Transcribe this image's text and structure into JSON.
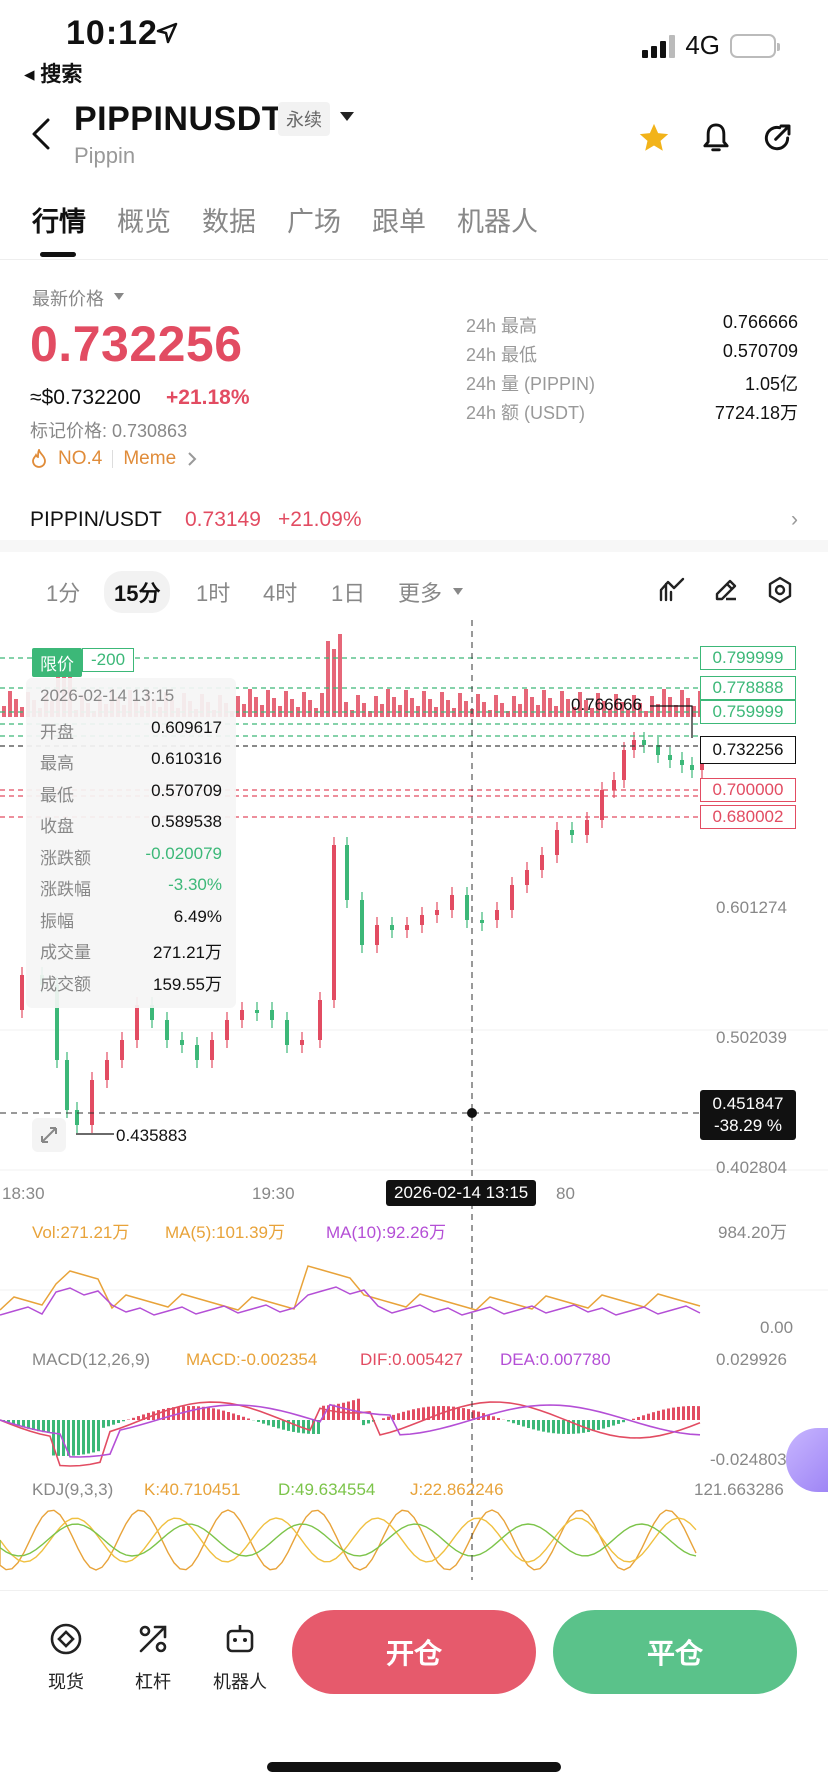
{
  "status_bar": {
    "time": "10:12",
    "back_app": "◂ 搜索",
    "network": "4G"
  },
  "header": {
    "symbol": "PIPPINUSDT",
    "contract_tag": "永续",
    "name": "Pippin"
  },
  "tabs": [
    "行情",
    "概览",
    "数据",
    "广场",
    "跟单",
    "机器人"
  ],
  "price_block": {
    "latest_label": "最新价格",
    "last_price": "0.732256",
    "usd_price": "≈$0.732200",
    "change_pct": "+21.18%",
    "mark_price": "标记价格: 0.730863",
    "rank": "NO.4",
    "category": "Meme"
  },
  "stats": [
    {
      "label": "24h  最高",
      "value": "0.766666"
    },
    {
      "label": "24h  最低",
      "value": "0.570709"
    },
    {
      "label": "24h  量 (PIPPIN)",
      "value": "1.05亿"
    },
    {
      "label": "24h  额 (USDT)",
      "value": "7724.18万"
    }
  ],
  "spot_pair": {
    "name": "PIPPIN/USDT",
    "price": "0.73149",
    "change": "+21.09%"
  },
  "timeframes": {
    "items": [
      "1分",
      "15分",
      "1时",
      "4时",
      "1日",
      "更多"
    ],
    "active": "15分"
  },
  "chart": {
    "order_tag": "限价",
    "order_qty": "-200",
    "price_levels": [
      "0.799999",
      "0.778888",
      "0.759999",
      "0.732256",
      "0.700000",
      "0.680002"
    ],
    "y_labels": [
      "0.601274",
      "0.502039",
      "0.402804"
    ],
    "crosshair": {
      "price": "0.451847",
      "pct": "-38.29 %",
      "time": "2026-02-14 13:15"
    },
    "high_marker": "0.766666",
    "low_marker": "0.435883",
    "x_labels": [
      "18:30",
      "19:30",
      "80"
    ],
    "tooltip": {
      "date": "2026-02-14 13:15",
      "rows": [
        {
          "k": "开盘",
          "v": "0.609617"
        },
        {
          "k": "最高",
          "v": "0.610316"
        },
        {
          "k": "最低",
          "v": "0.570709"
        },
        {
          "k": "收盘",
          "v": "0.589538"
        },
        {
          "k": "涨跌额",
          "v": "-0.020079"
        },
        {
          "k": "涨跌幅",
          "v": "-3.30%"
        },
        {
          "k": "振幅",
          "v": "6.49%"
        },
        {
          "k": "成交量",
          "v": "271.21万"
        },
        {
          "k": "成交额",
          "v": "159.55万"
        }
      ]
    }
  },
  "indicators": {
    "vol": {
      "vol": "Vol:271.21万",
      "ma5": "MA(5):101.39万",
      "ma10": "MA(10):92.26万",
      "max": "984.20万",
      "min": "0.00"
    },
    "macd": {
      "name": "MACD(12,26,9)",
      "macd": "MACD:-0.002354",
      "dif": "DIF:0.005427",
      "dea": "DEA:0.007780",
      "max": "0.029926",
      "min": "-0.024803"
    },
    "kdj": {
      "name": "KDJ(9,3,3)",
      "k": "K:40.710451",
      "d": "D:49.634554",
      "j": "J:22.862246",
      "max": "121.663286"
    }
  },
  "bottom_bar": {
    "spot": "现货",
    "leverage": "杠杆",
    "robot": "机器人",
    "open": "开仓",
    "close": "平仓"
  },
  "colors": {
    "up": "#e24c62",
    "down": "#3cb878",
    "ma5": "#e8a33a",
    "ma10": "#b44fd6"
  }
}
